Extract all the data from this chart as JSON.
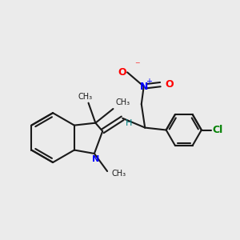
{
  "background_color": "#ebebeb",
  "bond_color": "#1a1a1a",
  "n_color": "#0000ff",
  "o_color": "#ff0000",
  "cl_color": "#008000",
  "h_color": "#008080",
  "line_width": 1.5,
  "figsize": [
    3.0,
    3.0
  ],
  "dpi": 100,
  "xlim": [
    0,
    10
  ],
  "ylim": [
    0,
    10
  ]
}
